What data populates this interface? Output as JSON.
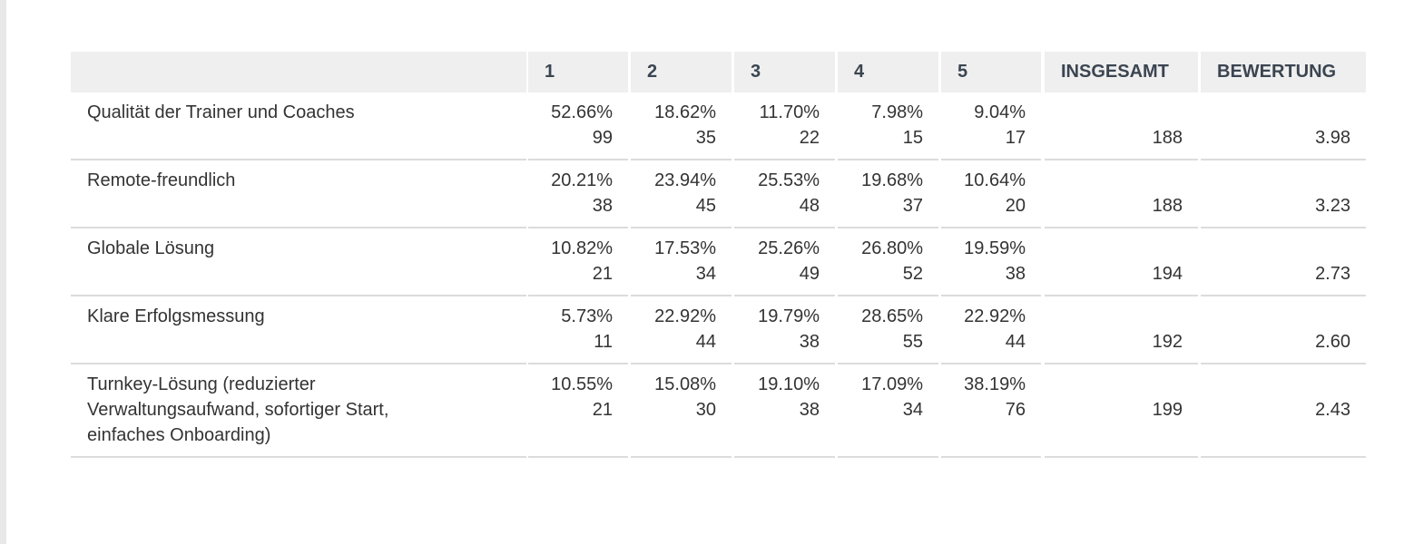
{
  "table": {
    "header": [
      "",
      "1",
      "2",
      "3",
      "4",
      "5",
      "INSGESAMT",
      "BEWERTUNG"
    ],
    "rows": [
      {
        "label": "Qualität der Trainer und Coaches",
        "cells": [
          [
            "52.66%",
            "99"
          ],
          [
            "18.62%",
            "35"
          ],
          [
            "11.70%",
            "22"
          ],
          [
            "7.98%",
            "15"
          ],
          [
            "9.04%",
            "17"
          ]
        ],
        "total": "188",
        "rating": "3.98"
      },
      {
        "label": "Remote-freundlich",
        "cells": [
          [
            "20.21%",
            "38"
          ],
          [
            "23.94%",
            "45"
          ],
          [
            "25.53%",
            "48"
          ],
          [
            "19.68%",
            "37"
          ],
          [
            "10.64%",
            "20"
          ]
        ],
        "total": "188",
        "rating": "3.23"
      },
      {
        "label": "Globale Lösung",
        "cells": [
          [
            "10.82%",
            "21"
          ],
          [
            "17.53%",
            "34"
          ],
          [
            "25.26%",
            "49"
          ],
          [
            "26.80%",
            "52"
          ],
          [
            "19.59%",
            "38"
          ]
        ],
        "total": "194",
        "rating": "2.73"
      },
      {
        "label": "Klare Erfolgsmessung",
        "cells": [
          [
            "5.73%",
            "11"
          ],
          [
            "22.92%",
            "44"
          ],
          [
            "19.79%",
            "38"
          ],
          [
            "28.65%",
            "55"
          ],
          [
            "22.92%",
            "44"
          ]
        ],
        "total": "192",
        "rating": "2.60"
      },
      {
        "label": "Turnkey-Lösung (reduzierter Verwaltungsaufwand, sofortiger Start, einfaches Onboarding)",
        "cells": [
          [
            "10.55%",
            "21"
          ],
          [
            "15.08%",
            "30"
          ],
          [
            "19.10%",
            "38"
          ],
          [
            "17.09%",
            "34"
          ],
          [
            "38.19%",
            "76"
          ]
        ],
        "total": "199",
        "rating": "2.43"
      }
    ]
  }
}
